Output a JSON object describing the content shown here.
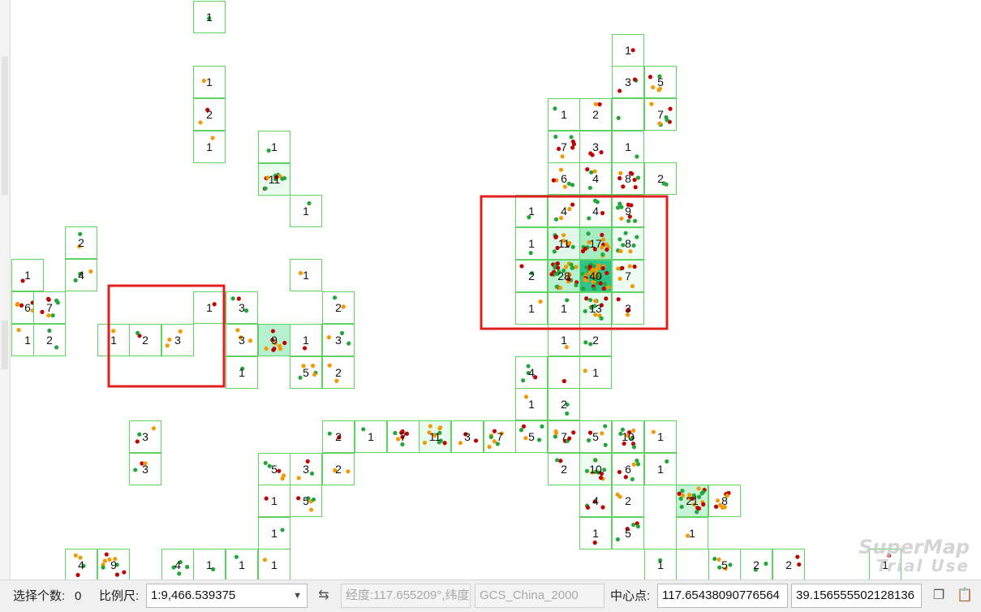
{
  "map": {
    "cells": [
      [
        "238,1",
        "1"
      ],
      [
        "238,81",
        "1"
      ],
      [
        "238,121",
        "2"
      ],
      [
        "238,161",
        "1"
      ],
      [
        "318,161",
        "1"
      ],
      [
        "318,201",
        "11"
      ],
      [
        "357,240",
        "1"
      ],
      [
        "80,279",
        "2"
      ],
      [
        "80,319",
        "4"
      ],
      [
        "14,319",
        "1"
      ],
      [
        "14,359",
        "6"
      ],
      [
        "41,359",
        "7"
      ],
      [
        "14,399",
        "1"
      ],
      [
        "41,399",
        "2"
      ],
      [
        "120,399",
        "1"
      ],
      [
        "159,399",
        "2"
      ],
      [
        "199,399",
        "3"
      ],
      [
        "238,359",
        "1"
      ],
      [
        "278,359",
        "3"
      ],
      [
        "278,399",
        "3"
      ],
      [
        "318,399",
        "9"
      ],
      [
        "357,399",
        "1"
      ],
      [
        "397,399",
        "3"
      ],
      [
        "278,439",
        "1"
      ],
      [
        "357,439",
        "5"
      ],
      [
        "397,439",
        "2"
      ],
      [
        "357,319",
        "1"
      ],
      [
        "397,359",
        "2"
      ],
      [
        "159,518",
        "3"
      ],
      [
        "159,558",
        "3"
      ],
      [
        "318,558",
        "5"
      ],
      [
        "357,558",
        "3"
      ],
      [
        "397,558",
        "2"
      ],
      [
        "318,597",
        "1"
      ],
      [
        "357,597",
        "5"
      ],
      [
        "318,637",
        "1"
      ],
      [
        "80,676",
        "4"
      ],
      [
        "120,676",
        "9"
      ],
      [
        "199,676",
        "4"
      ],
      [
        "238,676",
        "1"
      ],
      [
        "278,676",
        "1"
      ],
      [
        "318,676",
        "1"
      ],
      [
        "397,518",
        "2"
      ],
      [
        "437,518",
        "1"
      ],
      [
        "477,518",
        "7"
      ],
      [
        "516,518",
        "11"
      ],
      [
        "556,518",
        "3"
      ],
      [
        "596,518",
        "7"
      ],
      [
        "635,518",
        "5"
      ],
      [
        "675,518",
        "7"
      ],
      [
        "714,518",
        "5"
      ],
      [
        "754,518",
        "10"
      ],
      [
        "794,518",
        "1"
      ],
      [
        "675,558",
        "2"
      ],
      [
        "714,558",
        "10"
      ],
      [
        "754,558",
        "6"
      ],
      [
        "794,558",
        "1"
      ],
      [
        "714,597",
        "4"
      ],
      [
        "754,597",
        "2"
      ],
      [
        "833,597",
        "21"
      ],
      [
        "873,597",
        "8"
      ],
      [
        "714,637",
        "1"
      ],
      [
        "754,637",
        "5"
      ],
      [
        "833,637",
        "1"
      ],
      [
        "794,676",
        "1"
      ],
      [
        "873,676",
        "5"
      ],
      [
        "912,676",
        "2"
      ],
      [
        "952,676",
        "2"
      ],
      [
        "1071,676",
        "1"
      ],
      [
        "635,439",
        "4"
      ],
      [
        "675,439",
        ""
      ],
      [
        "714,439",
        "1"
      ],
      [
        "635,478",
        "1"
      ],
      [
        "675,478",
        "2"
      ],
      [
        "675,399",
        "1"
      ],
      [
        "714,399",
        "2"
      ],
      [
        "754,42",
        "1"
      ],
      [
        "754,81",
        "3"
      ],
      [
        "794,81",
        "5"
      ],
      [
        "794,121",
        "7"
      ],
      [
        "675,121",
        "1"
      ],
      [
        "714,121",
        "2"
      ],
      [
        "754,121",
        ""
      ],
      [
        "675,161",
        "7"
      ],
      [
        "714,161",
        "3"
      ],
      [
        "754,161",
        "1"
      ],
      [
        "675,200",
        "6"
      ],
      [
        "714,200",
        "4"
      ],
      [
        "754,200",
        "8"
      ],
      [
        "794,200",
        "2"
      ],
      [
        "635,240",
        "1"
      ],
      [
        "675,240",
        "4"
      ],
      [
        "714,240",
        "4"
      ],
      [
        "754,240",
        "9"
      ],
      [
        "635,280",
        "1"
      ],
      [
        "675,280",
        "11"
      ],
      [
        "714,280",
        "17"
      ],
      [
        "754,280",
        "8"
      ],
      [
        "635,320",
        "2"
      ],
      [
        "675,320",
        "28"
      ],
      [
        "714,320",
        "40"
      ],
      [
        "754,320",
        "7"
      ],
      [
        "635,360",
        "1"
      ],
      [
        "675,360",
        "1"
      ],
      [
        "714,360",
        "13"
      ],
      [
        "754,360",
        "3"
      ]
    ],
    "highlight_colors": {
      "green": "#22a83a",
      "orange": "#f29a00",
      "red": "#c00000",
      "grid": "#5fd35f",
      "select": "#e02020"
    }
  },
  "watermark": {
    "line1": "SuperMap",
    "line2": "Trial Use"
  },
  "statusbar": {
    "selected_count_label": "选择个数:",
    "selected_count_value": "0",
    "scale_label": "比例尺:",
    "scale_value": "1:9,466.539375",
    "coord_text": "经度:117.655209°,纬度",
    "crs_text": "GCS_China_2000",
    "center_label": "中心点:",
    "center_x": "117.65438090776564",
    "center_y": "39.156555502128136"
  }
}
